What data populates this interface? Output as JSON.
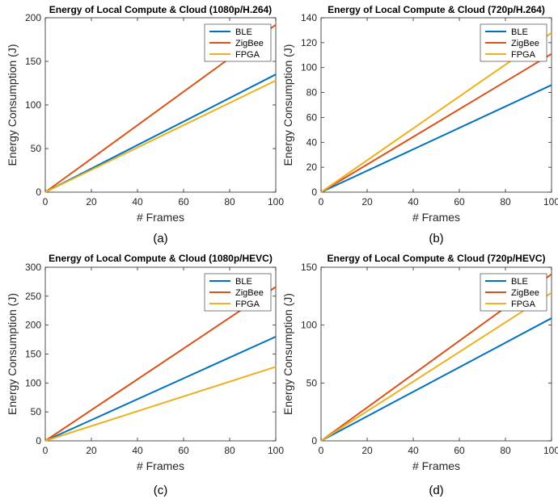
{
  "chart_data": [
    {
      "type": "line",
      "title": "Energy of Local Compute & Cloud (1080p/H.264)",
      "xlabel": "# Frames",
      "ylabel": "Energy Consumption (J)",
      "caption": "(a)",
      "xlim": [
        0,
        100
      ],
      "ylim": [
        0,
        200
      ],
      "xticks": [
        0,
        20,
        40,
        60,
        80,
        100
      ],
      "yticks": [
        0,
        50,
        100,
        150,
        200
      ],
      "grid": false,
      "legend_position": "top-right",
      "series": [
        {
          "name": "BLE",
          "color": "#0072BD",
          "x": [
            0,
            100
          ],
          "y": [
            0,
            135
          ]
        },
        {
          "name": "ZigBee",
          "color": "#D95319",
          "x": [
            0,
            100
          ],
          "y": [
            0,
            192
          ]
        },
        {
          "name": "FPGA",
          "color": "#EDB120",
          "x": [
            0,
            100
          ],
          "y": [
            0,
            128
          ]
        }
      ]
    },
    {
      "type": "line",
      "title": "Energy of Local Compute & Cloud (720p/H.264)",
      "xlabel": "# Frames",
      "ylabel": "Energy Consumption (J)",
      "caption": "(b)",
      "xlim": [
        0,
        100
      ],
      "ylim": [
        0,
        140
      ],
      "xticks": [
        0,
        20,
        40,
        60,
        80,
        100
      ],
      "yticks": [
        0,
        20,
        40,
        60,
        80,
        100,
        120,
        140
      ],
      "grid": false,
      "legend_position": "top-right",
      "series": [
        {
          "name": "BLE",
          "color": "#0072BD",
          "x": [
            0,
            100
          ],
          "y": [
            0,
            86
          ]
        },
        {
          "name": "ZigBee",
          "color": "#D95319",
          "x": [
            0,
            100
          ],
          "y": [
            0,
            111
          ]
        },
        {
          "name": "FPGA",
          "color": "#EDB120",
          "x": [
            0,
            100
          ],
          "y": [
            0,
            128
          ]
        }
      ]
    },
    {
      "type": "line",
      "title": "Energy of Local Compute & Cloud (1080p/HEVC)",
      "xlabel": "# Frames",
      "ylabel": "Energy Consumption (J)",
      "caption": "(c)",
      "xlim": [
        0,
        100
      ],
      "ylim": [
        0,
        300
      ],
      "xticks": [
        0,
        20,
        40,
        60,
        80,
        100
      ],
      "yticks": [
        0,
        50,
        100,
        150,
        200,
        250,
        300
      ],
      "grid": false,
      "legend_position": "top-right",
      "series": [
        {
          "name": "BLE",
          "color": "#0072BD",
          "x": [
            0,
            100
          ],
          "y": [
            0,
            180
          ]
        },
        {
          "name": "ZigBee",
          "color": "#D95319",
          "x": [
            0,
            100
          ],
          "y": [
            0,
            266
          ]
        },
        {
          "name": "FPGA",
          "color": "#EDB120",
          "x": [
            0,
            100
          ],
          "y": [
            0,
            128
          ]
        }
      ]
    },
    {
      "type": "line",
      "title": "Energy of Local Compute & Cloud (720p/HEVC)",
      "xlabel": "# Frames",
      "ylabel": "Energy Consumption (J)",
      "caption": "(d)",
      "xlim": [
        0,
        100
      ],
      "ylim": [
        0,
        150
      ],
      "xticks": [
        0,
        20,
        40,
        60,
        80,
        100
      ],
      "yticks": [
        0,
        50,
        100,
        150
      ],
      "grid": false,
      "legend_position": "top-right",
      "series": [
        {
          "name": "BLE",
          "color": "#0072BD",
          "x": [
            0,
            100
          ],
          "y": [
            0,
            106
          ]
        },
        {
          "name": "ZigBee",
          "color": "#D95319",
          "x": [
            0,
            100
          ],
          "y": [
            0,
            144
          ]
        },
        {
          "name": "FPGA",
          "color": "#EDB120",
          "x": [
            0,
            100
          ],
          "y": [
            0,
            128
          ]
        }
      ]
    }
  ]
}
